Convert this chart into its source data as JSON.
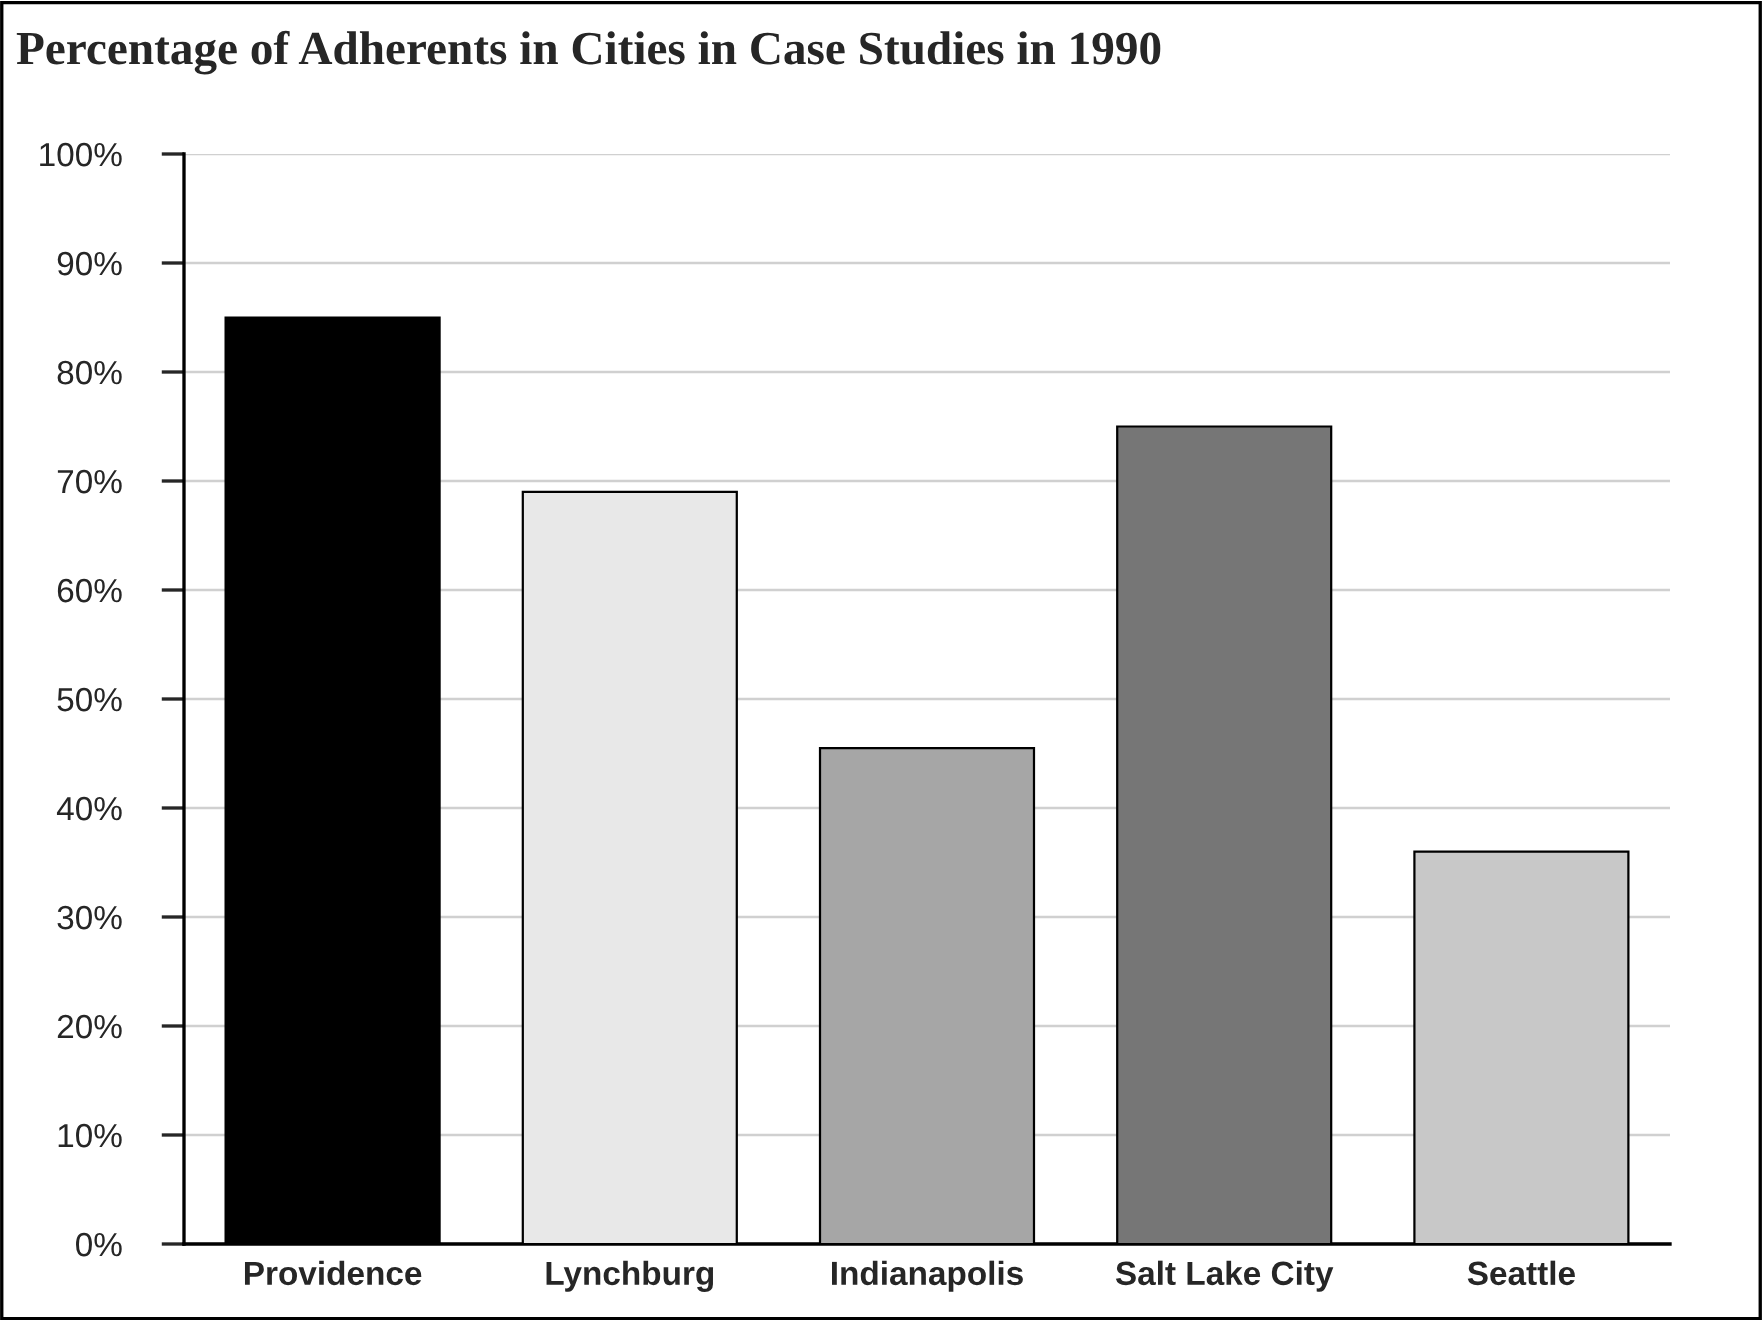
{
  "chart_data": {
    "type": "bar",
    "title": "Percentage of Adherents in Cities in Case Studies in 1990",
    "categories": [
      "Providence",
      "Lynchburg",
      "Indianapolis",
      "Salt Lake City",
      "Seattle"
    ],
    "values": [
      85,
      69,
      45.5,
      75,
      36
    ],
    "colors": [
      "#000000",
      "#e8e8e8",
      "#a6a6a6",
      "#767676",
      "#c8c8c8"
    ],
    "ylim": [
      0,
      100
    ],
    "yticks": [
      {
        "value": 0,
        "label": "0%"
      },
      {
        "value": 10,
        "label": "10%"
      },
      {
        "value": 20,
        "label": "20%"
      },
      {
        "value": 30,
        "label": "30%"
      },
      {
        "value": 40,
        "label": "40%"
      },
      {
        "value": 50,
        "label": "50%"
      },
      {
        "value": 60,
        "label": "60%"
      },
      {
        "value": 70,
        "label": "70%"
      },
      {
        "value": 80,
        "label": "80%"
      },
      {
        "value": 90,
        "label": "90%"
      },
      {
        "value": 100,
        "label": "100%"
      }
    ],
    "grid": "y"
  }
}
